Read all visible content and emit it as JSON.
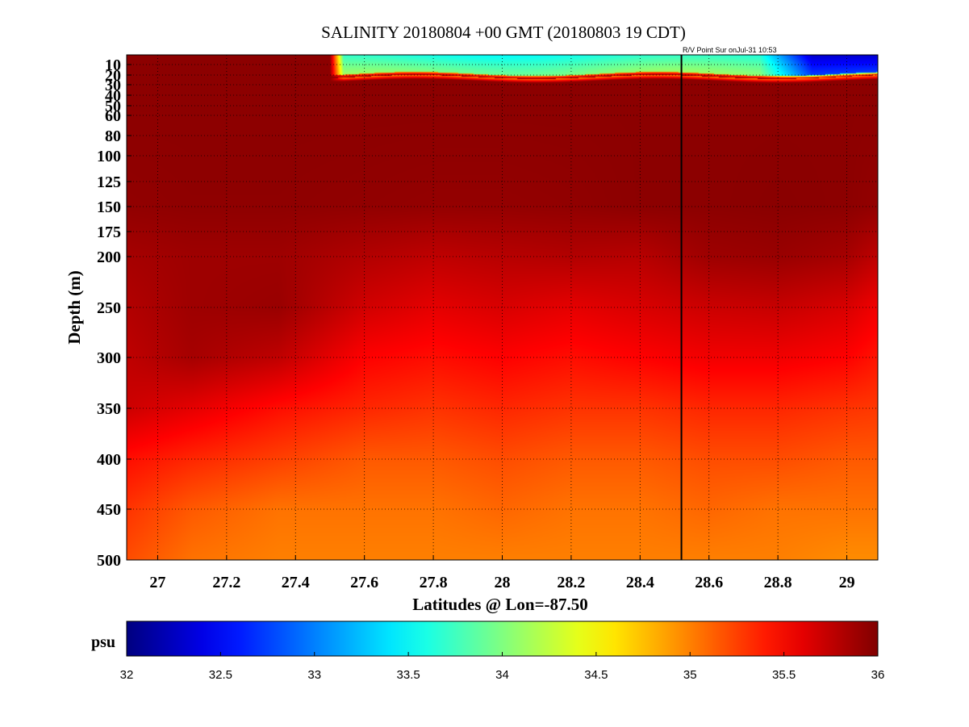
{
  "chart_data": {
    "type": "heatmap",
    "title": "SALINITY 20180804 +00 GMT (20180803 19 CDT)",
    "annotation": "R/V Point Sur onJul-31 10:53",
    "xlabel": "Latitudes @ Lon=-87.50",
    "ylabel": "Depth (m)",
    "xlim": [
      26.91,
      29.09
    ],
    "ylim": [
      500,
      0
    ],
    "x_ticks": [
      27,
      27.2,
      27.4,
      27.6,
      27.8,
      28,
      28.2,
      28.4,
      28.6,
      28.8,
      29
    ],
    "x_tick_labels": [
      "27",
      "27.2",
      "27.4",
      "27.6",
      "27.8",
      "28",
      "28.2",
      "28.4",
      "28.6",
      "28.8",
      "29"
    ],
    "y_ticks": [
      10,
      20,
      30,
      40,
      50,
      60,
      80,
      100,
      125,
      150,
      175,
      200,
      250,
      300,
      350,
      400,
      450,
      500
    ],
    "y_tick_labels": [
      "10",
      "20",
      "30",
      "40",
      "50",
      "60",
      "80",
      "100",
      "125",
      "150",
      "175",
      "200",
      "250",
      "300",
      "350",
      "400",
      "450",
      "500"
    ],
    "grid": true,
    "vertical_line_x": 28.52,
    "colorbar": {
      "label": "psu",
      "range": [
        32,
        36
      ],
      "ticks": [
        32,
        32.5,
        33,
        33.5,
        34,
        34.5,
        35,
        35.5,
        36
      ],
      "tick_labels": [
        "32",
        "32.5",
        "33",
        "33.5",
        "34",
        "34.5",
        "35",
        "35.5",
        "36"
      ],
      "colormap": "jet"
    },
    "surface_fresh_layer": {
      "lat_start": 27.5,
      "bottom_depth_m": 22,
      "low_salinity_region_lat_start": 28.75,
      "salinity_min_psu": 32.3
    },
    "field_samples": [
      {
        "depth": 50,
        "values": [
          35.95,
          35.95,
          35.95,
          35.95,
          35.95,
          35.95,
          35.95,
          35.95,
          35.95,
          35.95,
          35.95,
          35.95
        ]
      },
      {
        "depth": 150,
        "values": [
          35.93,
          35.94,
          35.94,
          35.93,
          35.92,
          35.92,
          35.93,
          35.95,
          35.95,
          35.96,
          35.95,
          35.92
        ]
      },
      {
        "depth": 200,
        "values": [
          35.85,
          35.88,
          35.88,
          35.8,
          35.75,
          35.78,
          35.8,
          35.78,
          35.88,
          35.9,
          35.85,
          35.75
        ]
      },
      {
        "depth": 250,
        "values": [
          35.8,
          35.88,
          35.9,
          35.68,
          35.6,
          35.65,
          35.6,
          35.65,
          35.7,
          35.72,
          35.65,
          35.55
        ]
      },
      {
        "depth": 300,
        "values": [
          35.75,
          35.85,
          35.75,
          35.5,
          35.45,
          35.5,
          35.45,
          35.5,
          35.55,
          35.55,
          35.5,
          35.42
        ]
      },
      {
        "depth": 350,
        "values": [
          35.7,
          35.6,
          35.45,
          35.35,
          35.3,
          35.35,
          35.3,
          35.3,
          35.35,
          35.35,
          35.3,
          35.28
        ]
      },
      {
        "depth": 400,
        "values": [
          35.45,
          35.35,
          35.25,
          35.15,
          35.15,
          35.2,
          35.15,
          35.15,
          35.2,
          35.2,
          35.15,
          35.15
        ]
      },
      {
        "depth": 450,
        "values": [
          35.3,
          35.15,
          35.05,
          35.05,
          35.05,
          35.1,
          35.05,
          35.05,
          35.1,
          35.05,
          35.05,
          35.05
        ]
      },
      {
        "depth": 500,
        "values": [
          35.2,
          35.05,
          35.0,
          35.0,
          35.0,
          35.0,
          35.0,
          35.0,
          35.0,
          35.0,
          34.95,
          34.95
        ]
      }
    ],
    "field_sample_lats": [
      26.91,
      27.1,
      27.35,
      27.6,
      27.8,
      28.0,
      28.2,
      28.4,
      28.6,
      28.8,
      29.0,
      29.09
    ]
  }
}
